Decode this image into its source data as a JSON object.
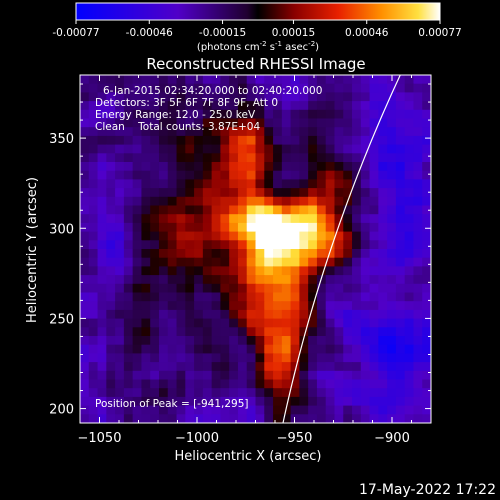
{
  "colorbar": {
    "ticks": [
      "-0.00077",
      "-0.00046",
      "-0.00015",
      "0.00015",
      "0.00046",
      "0.00077"
    ],
    "unit_label": "(photons cm",
    "unit_exp1": "-2",
    "unit_mid": " s",
    "unit_exp2": "-1",
    "unit_mid2": " asec",
    "unit_exp3": "-2",
    "unit_end": ")"
  },
  "footer": {
    "date": "17-May-2022 17:22"
  },
  "chart_data": {
    "type": "heatmap",
    "title": "Reconstructed RHESSI Image",
    "xlabel": "Heliocentric X (arcsec)",
    "ylabel": "Heliocentric Y (arcsec)",
    "xlim": [
      -1060,
      -880
    ],
    "ylim": [
      192,
      385
    ],
    "xticks": [
      -1050,
      -1000,
      -950,
      -900
    ],
    "yticks": [
      200,
      250,
      300,
      350
    ],
    "xtick_labels": [
      "−1050",
      "−1000",
      "−950",
      "−900"
    ],
    "ytick_labels": [
      "200",
      "250",
      "300",
      "350"
    ],
    "annotations": [
      "6-Jan-2015 02:34:20.000 to 02:40:20.000",
      "Detectors: 3F 5F 6F 7F 8F 9F, Att 0",
      "Energy Range: 12.0 - 25.0 keV",
      "Clean    Total counts: 3.87E+04"
    ],
    "peak_label": "Position of Peak = [-941,295]",
    "peak": [
      -941,
      295
    ],
    "colormap": "heat",
    "value_range": [
      -0.00077,
      0.00077
    ],
    "limb_color": "#ffffff"
  }
}
